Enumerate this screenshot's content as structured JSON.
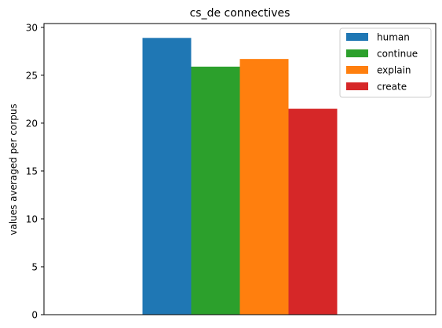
{
  "chart_data": {
    "type": "bar",
    "title": "cs_de connectives",
    "xlabel": "",
    "ylabel": "values averaged per corpus",
    "categories": [
      ""
    ],
    "series": [
      {
        "name": "human",
        "values": [
          28.9
        ],
        "color": "#1f77b4"
      },
      {
        "name": "continue",
        "values": [
          25.9
        ],
        "color": "#2ca02c"
      },
      {
        "name": "explain",
        "values": [
          26.7
        ],
        "color": "#ff7f0e"
      },
      {
        "name": "create",
        "values": [
          21.5
        ],
        "color": "#d62728"
      }
    ],
    "ylim": [
      0,
      30.4
    ],
    "yticks": [
      0,
      5,
      10,
      15,
      20,
      25,
      30
    ],
    "grid": false,
    "legend_position": "top-right"
  }
}
